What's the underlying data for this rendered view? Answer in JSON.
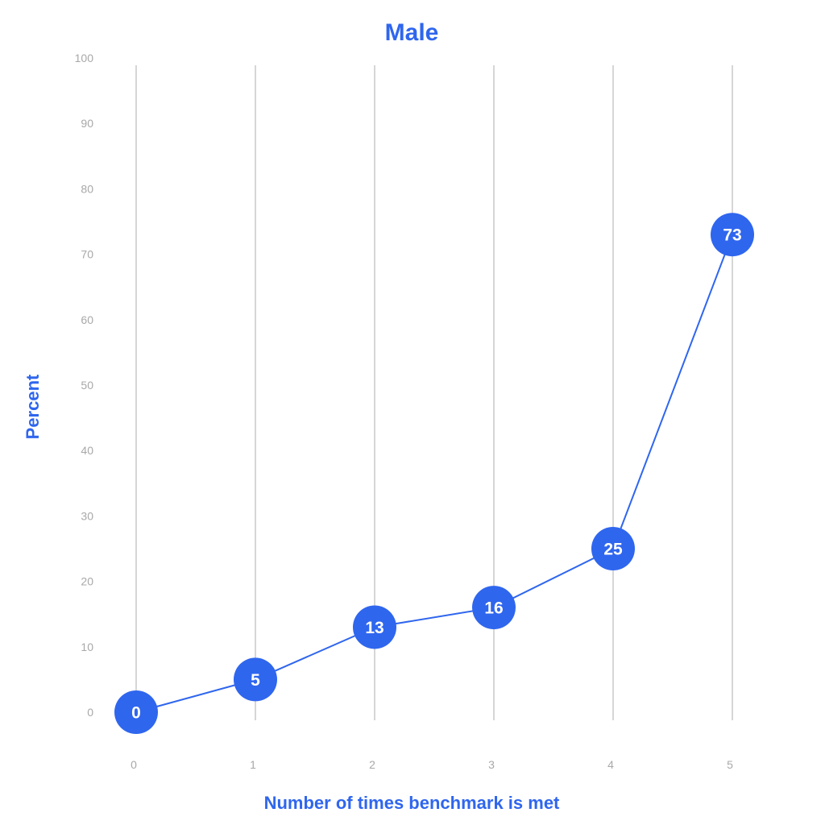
{
  "chart_data": {
    "type": "line",
    "title": "Male",
    "xlabel": "Number of times benchmark is met",
    "ylabel": "Percent",
    "x": [
      0,
      1,
      2,
      3,
      4,
      5
    ],
    "x_tick_labels": [
      "0",
      "1",
      "2",
      "3",
      "4",
      "5"
    ],
    "y_tick_labels": [
      "0",
      "10",
      "20",
      "30",
      "40",
      "50",
      "60",
      "70",
      "80",
      "90",
      "100"
    ],
    "series": [
      {
        "values": [
          0,
          5,
          13,
          16,
          25,
          73
        ],
        "value_labels": [
          "0",
          "5",
          "13",
          "16",
          "25",
          "73"
        ]
      }
    ],
    "xlim": [
      0,
      5
    ],
    "ylim": [
      0,
      100
    ],
    "grid": "vertical",
    "legend": "none",
    "colors": {
      "accent": "#2f66ee",
      "grid": "#c8c8c8",
      "tick": "#a8a8a8",
      "marker_text": "#ffffff"
    }
  }
}
